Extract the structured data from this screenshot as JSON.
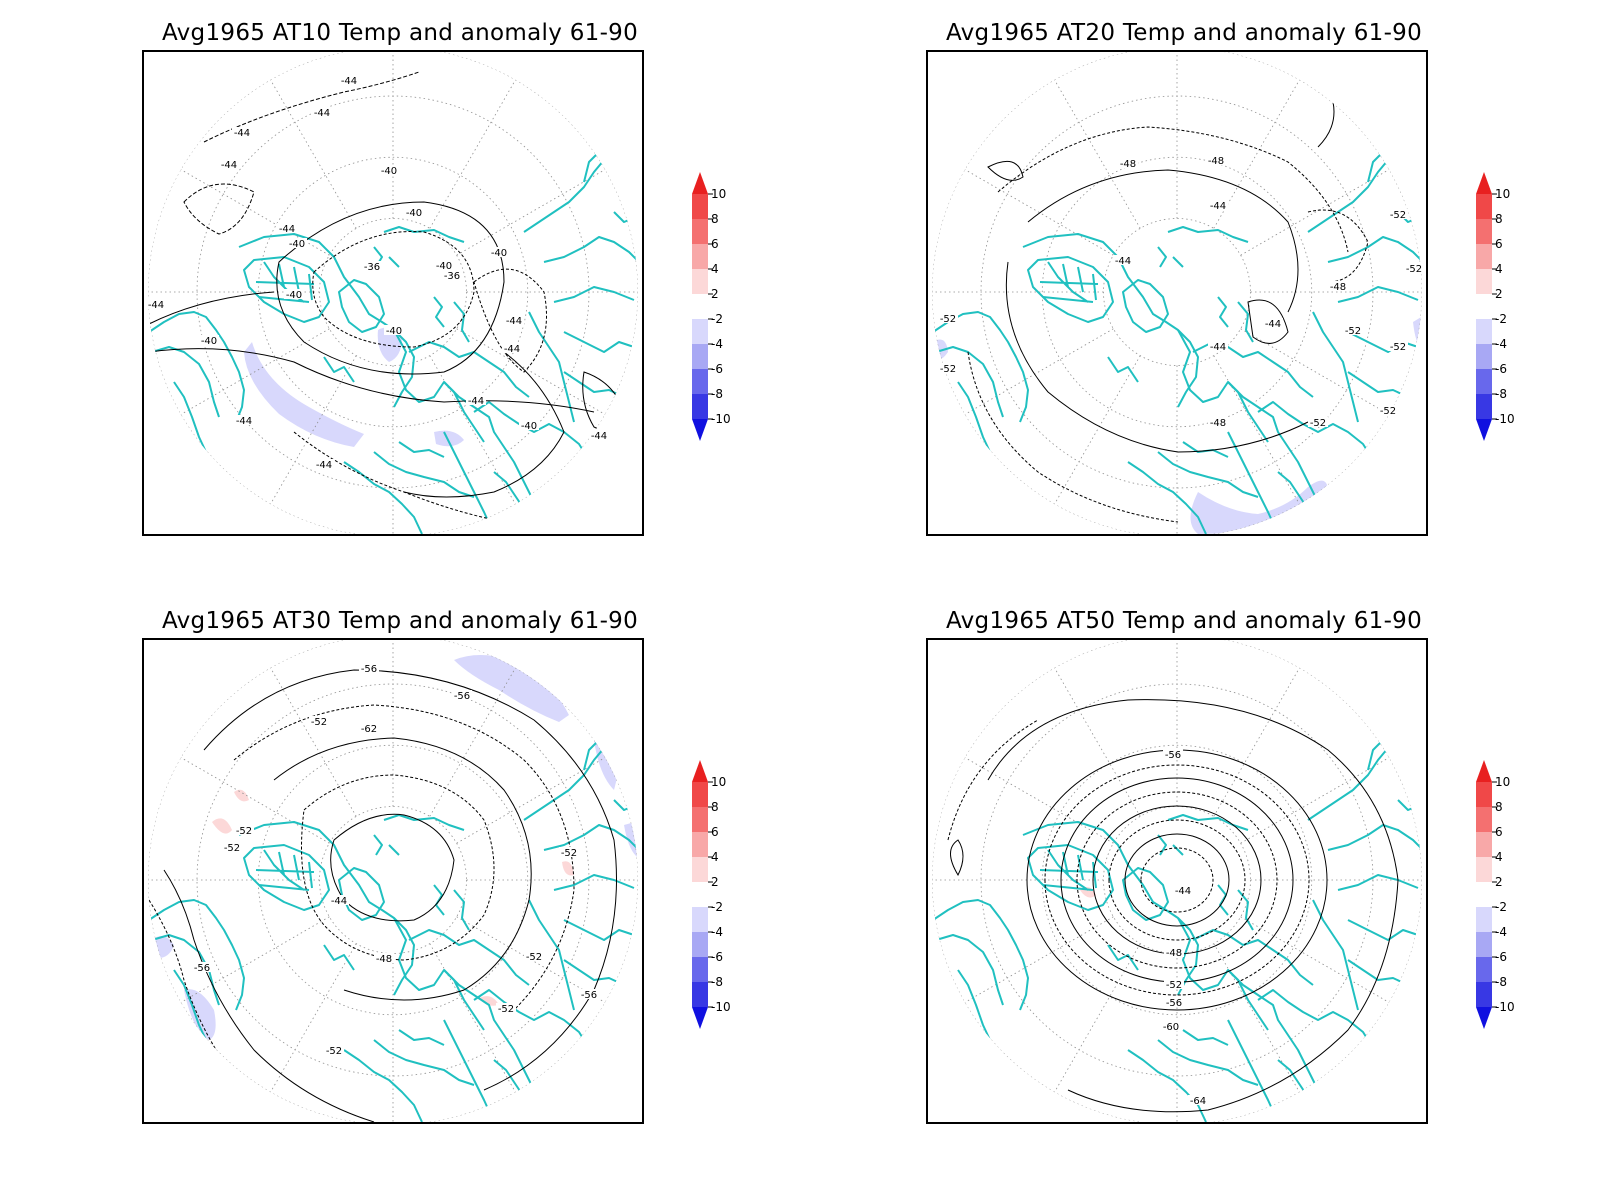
{
  "panels": [
    {
      "title": "Avg1965 AT10 Temp and anomaly 61-90",
      "contour_labels": [
        "-44",
        "-44",
        "-44",
        "-44",
        "-40",
        "-44",
        "-40",
        "-40",
        "-40",
        "-36",
        "-40",
        "-36",
        "-40",
        "-44",
        "-40",
        "-44",
        "-44",
        "-40",
        "-44",
        "-44",
        "-44",
        "-40",
        "-44"
      ]
    },
    {
      "title": "Avg1965 AT20 Temp and anomaly 61-90",
      "contour_labels": [
        "-48",
        "-48",
        "-44",
        "-44",
        "-52",
        "-52",
        "-52",
        "-52",
        "-48",
        "-44",
        "-52",
        "-52",
        "-52",
        "-48",
        "-52",
        "-44"
      ]
    },
    {
      "title": "Avg1965 AT30 Temp and anomaly 61-90",
      "contour_labels": [
        "-56",
        "-56",
        "-52",
        "-62",
        "-52",
        "-52",
        "-52",
        "-44",
        "-48",
        "-52",
        "-56",
        "-52",
        "-52",
        "-56"
      ]
    },
    {
      "title": "Avg1965 AT50 Temp and anomaly 61-90",
      "contour_labels": [
        "-56",
        "-44",
        "-48",
        "-52",
        "-56",
        "-60",
        "-64"
      ]
    }
  ],
  "colorbar": {
    "labels": [
      "10",
      "8",
      "6",
      "4",
      "2",
      "-2",
      "-4",
      "-6",
      "-8",
      "-10"
    ],
    "colors": [
      "#e82020",
      "#f04848",
      "#f47070",
      "#f8a8a8",
      "#fcd8d8",
      "#ffffff",
      "#d8d8fc",
      "#a8a8f4",
      "#6868ec",
      "#3838e4",
      "#1010e0"
    ]
  },
  "colors": {
    "coastline": "#20c0c0",
    "contour": "#000000",
    "grid": "#909090"
  }
}
